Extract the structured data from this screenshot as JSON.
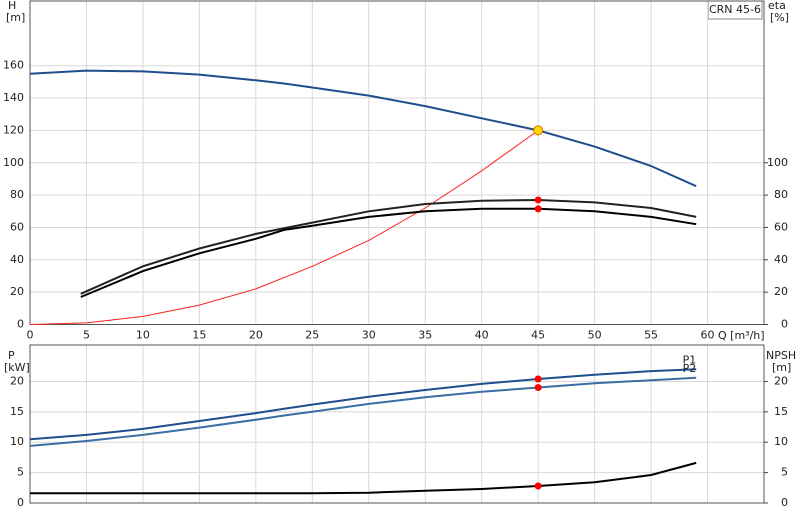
{
  "chart_data": [
    {
      "type": "line",
      "model": "CRN 45-6",
      "y_label": "H",
      "y_unit": "[m]",
      "y2_label": "eta",
      "y2_unit": "[%]",
      "x_label": "Q [m³/h]",
      "xlim": [
        0,
        65
      ],
      "ylim": [
        0,
        200
      ],
      "y2lim": [
        0,
        200
      ],
      "xticks": [
        0,
        5,
        10,
        15,
        20,
        25,
        30,
        35,
        40,
        45,
        50,
        55,
        60
      ],
      "yticks": [
        0,
        20,
        40,
        60,
        80,
        100,
        120,
        140,
        160
      ],
      "y2ticks": [
        0,
        20,
        40,
        60,
        80,
        100
      ],
      "grid": true,
      "series": [
        {
          "color": "#1f4e8c",
          "style": "line",
          "x": [
            0,
            5,
            10,
            15,
            20,
            22.5,
            25,
            30,
            35,
            40,
            45,
            50,
            55,
            59
          ],
          "values": [
            155,
            157,
            156.5,
            154.5,
            151,
            149,
            146.5,
            141.5,
            135,
            127.5,
            120,
            110,
            98,
            85.5
          ]
        },
        {
          "color": "#ff2020",
          "style": "line",
          "x": [
            0,
            5,
            10,
            15,
            20,
            25,
            30,
            35,
            40,
            45
          ],
          "values": [
            0,
            1,
            5,
            12,
            22,
            36,
            52,
            72,
            95,
            120
          ]
        },
        {
          "color": "#222222",
          "style": "line",
          "axis": "y2",
          "x": [
            4.5,
            10,
            15,
            20,
            25,
            30,
            35,
            40,
            45,
            50,
            55,
            59
          ],
          "values": [
            19,
            36,
            47,
            56,
            63,
            70,
            74.5,
            76.5,
            77,
            75.5,
            72,
            66.5
          ]
        },
        {
          "color": "#000000",
          "style": "line",
          "axis": "y2",
          "x": [
            4.5,
            10,
            15,
            20,
            22.5,
            25,
            30,
            35,
            40,
            45,
            50,
            55,
            59
          ],
          "values": [
            17,
            33,
            44,
            53,
            58.5,
            61,
            66.5,
            70,
            71.5,
            71.5,
            70,
            66.5,
            62
          ]
        },
        {
          "color": "#ffd700",
          "style": "point",
          "x": [
            45
          ],
          "values": [
            120
          ]
        },
        {
          "color": "#ff0000",
          "style": "point",
          "axis": "y2",
          "x": [
            45,
            45
          ],
          "values": [
            77,
            71.5
          ]
        }
      ]
    },
    {
      "type": "line",
      "y_label": "P",
      "y_unit": "[kW]",
      "y2_label": "NPSH",
      "y2_unit": "[m]",
      "xlim": [
        0,
        65
      ],
      "ylim": [
        0,
        26
      ],
      "y2lim": [
        0,
        26
      ],
      "yticks": [
        0,
        5,
        10,
        15,
        20
      ],
      "y2ticks": [
        0,
        5,
        10,
        15,
        20
      ],
      "grid": true,
      "series": [
        {
          "name": "P1",
          "color": "#1f4e8c",
          "style": "line",
          "x": [
            0,
            5,
            10,
            15,
            20,
            22.5,
            25,
            30,
            35,
            40,
            45,
            50,
            55,
            59
          ],
          "values": [
            10.5,
            11.2,
            12.2,
            13.5,
            14.8,
            15.5,
            16.2,
            17.5,
            18.6,
            19.6,
            20.4,
            21.1,
            21.7,
            22
          ]
        },
        {
          "name": "P2",
          "color": "#3a6ea5",
          "style": "line",
          "x": [
            0,
            5,
            10,
            15,
            20,
            22.5,
            25,
            30,
            35,
            40,
            45,
            50,
            55,
            59
          ],
          "values": [
            9.4,
            10.2,
            11.2,
            12.4,
            13.7,
            14.4,
            15,
            16.3,
            17.4,
            18.3,
            19,
            19.7,
            20.2,
            20.6
          ]
        },
        {
          "color": "#000000",
          "style": "line",
          "axis": "y2",
          "x": [
            0,
            22.5,
            25,
            30,
            35,
            40,
            45,
            50,
            55,
            59
          ],
          "values": [
            1.6,
            1.6,
            1.6,
            1.7,
            2,
            2.3,
            2.8,
            3.4,
            4.6,
            6.6
          ]
        },
        {
          "color": "#ff0000",
          "style": "point",
          "x": [
            45,
            45
          ],
          "values": [
            20.4,
            19
          ]
        },
        {
          "color": "#ff0000",
          "style": "point",
          "axis": "y2",
          "x": [
            45
          ],
          "values": [
            2.8
          ]
        }
      ]
    }
  ]
}
